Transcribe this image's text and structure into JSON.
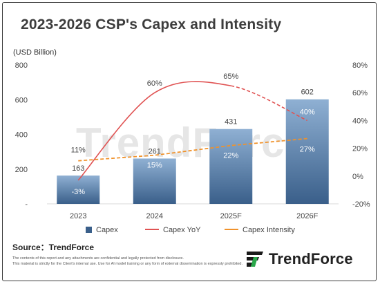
{
  "title": "2023-2026 CSP's Capex and Intensity",
  "unit_label": "(USD Billion)",
  "source": "Source：TrendForce",
  "disclaimer": [
    "The contents of this report and any attachments are confidential and legally protected from disclosure.",
    "This material is strictly for the Client's internal use. Use for AI model training or any form of external dissemination is expressly prohibited."
  ],
  "logo_text": "TrendForce",
  "watermark_text": "TrendForce",
  "colors": {
    "bar_top": "#8fb0d3",
    "bar_bottom": "#3a5f8a",
    "yoy_line": "#e05252",
    "intensity_line": "#f0922b"
  },
  "chart_data": {
    "type": "bar",
    "categories": [
      "2023",
      "2024",
      "2025F",
      "2026F"
    ],
    "y_left": {
      "min": 0,
      "max": 800,
      "ticks": [
        "-",
        "200",
        "400",
        "600",
        "800"
      ]
    },
    "y_right": {
      "min": -20,
      "max": 80,
      "ticks": [
        "-20%",
        "0%",
        "20%",
        "40%",
        "60%",
        "80%"
      ]
    },
    "series": [
      {
        "name": "Capex",
        "type": "bar",
        "axis": "left",
        "values": [
          163,
          261,
          431,
          602
        ],
        "labels": [
          "163",
          "261",
          "431",
          "602"
        ]
      },
      {
        "name": "Capex YoY",
        "type": "line",
        "axis": "right",
        "style": "solid-then-dashed",
        "values": [
          -3,
          60,
          65,
          40
        ],
        "labels": [
          "-3%",
          "60%",
          "65%",
          "40%"
        ]
      },
      {
        "name": "Capex Intensity",
        "type": "line",
        "axis": "right",
        "style": "dashed",
        "values": [
          11,
          15,
          22,
          27
        ],
        "labels": [
          "11%",
          "15%",
          "22%",
          "27%"
        ]
      }
    ],
    "legend_position": "bottom"
  }
}
